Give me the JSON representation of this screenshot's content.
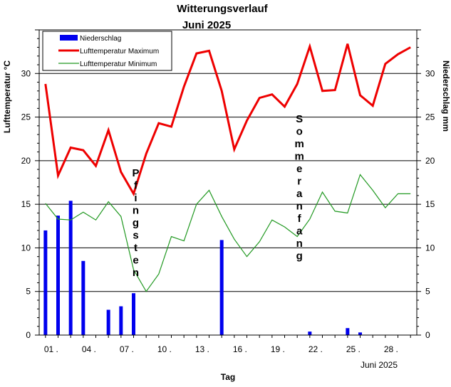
{
  "chart_data": {
    "type": "bar+line",
    "title": "Witterungsverlauf",
    "subtitle": "Juni 2025",
    "xlabel": "Tag",
    "x_note": "Juni 2025",
    "ylabel_left": "Lufttemperatur °C",
    "ylabel_right": "Niederschlag mm",
    "ylim": [
      0,
      35
    ],
    "yticks": [
      0,
      5,
      10,
      15,
      20,
      25,
      30
    ],
    "xlim": [
      0.5,
      30.5
    ],
    "xticks": [
      {
        "day": 1,
        "label": "01 ."
      },
      {
        "day": 4,
        "label": "04 ."
      },
      {
        "day": 7,
        "label": "07 ."
      },
      {
        "day": 10,
        "label": "10 ."
      },
      {
        "day": 13,
        "label": "13 ."
      },
      {
        "day": 16,
        "label": "16 ."
      },
      {
        "day": 19,
        "label": "19 ."
      },
      {
        "day": 22,
        "label": "22 ."
      },
      {
        "day": 25,
        "label": "25 ."
      },
      {
        "day": 28,
        "label": "28 ."
      }
    ],
    "grid": "horizontal",
    "legend_position": "top-left",
    "legend": [
      {
        "label": "Niederschlag",
        "color": "#0000ee",
        "kind": "bar"
      },
      {
        "label": "Lufttemperatur Maximum",
        "color": "#ee0000",
        "kind": "line"
      },
      {
        "label": "Lufttemperatur Minimum",
        "color": "#229922",
        "kind": "line"
      }
    ],
    "x": [
      1,
      2,
      3,
      4,
      5,
      6,
      7,
      8,
      9,
      10,
      11,
      12,
      13,
      14,
      15,
      16,
      17,
      18,
      19,
      20,
      21,
      22,
      23,
      24,
      25,
      26,
      27,
      28,
      29,
      30
    ],
    "series": [
      {
        "name": "Niederschlag",
        "type": "bar",
        "color": "#0000ee",
        "values": [
          12.0,
          13.7,
          15.4,
          8.5,
          0,
          2.9,
          3.3,
          4.8,
          0,
          0,
          0,
          0,
          0,
          0,
          10.9,
          0,
          0,
          0,
          0,
          0,
          0,
          0.4,
          0,
          0,
          0.8,
          0.3,
          0,
          0,
          0,
          0
        ]
      },
      {
        "name": "Lufttemperatur Maximum",
        "type": "line",
        "color": "#ee0000",
        "values": [
          28.8,
          18.3,
          21.5,
          21.2,
          19.4,
          23.5,
          18.7,
          16.2,
          20.8,
          24.3,
          23.9,
          28.5,
          32.3,
          32.6,
          28.0,
          21.3,
          24.6,
          27.2,
          27.6,
          26.2,
          28.8,
          33.1,
          28.0,
          28.1,
          33.4,
          27.5,
          26.3,
          31.1,
          32.2,
          33.0
        ]
      },
      {
        "name": "Lufttemperatur Minimum",
        "type": "line",
        "color": "#229922",
        "values": [
          15.1,
          13.3,
          13.2,
          14.1,
          13.2,
          15.3,
          13.6,
          7.5,
          5.0,
          7.0,
          11.3,
          10.8,
          15.0,
          16.6,
          13.6,
          11.0,
          9.0,
          10.7,
          13.2,
          12.4,
          11.3,
          13.3,
          16.4,
          14.2,
          14.0,
          18.4,
          16.6,
          14.6,
          16.2,
          16.2
        ]
      }
    ],
    "annotations": [
      {
        "text": "Pfingsten",
        "day": 8
      },
      {
        "text": "Sommeranfang",
        "day": 21
      }
    ]
  }
}
